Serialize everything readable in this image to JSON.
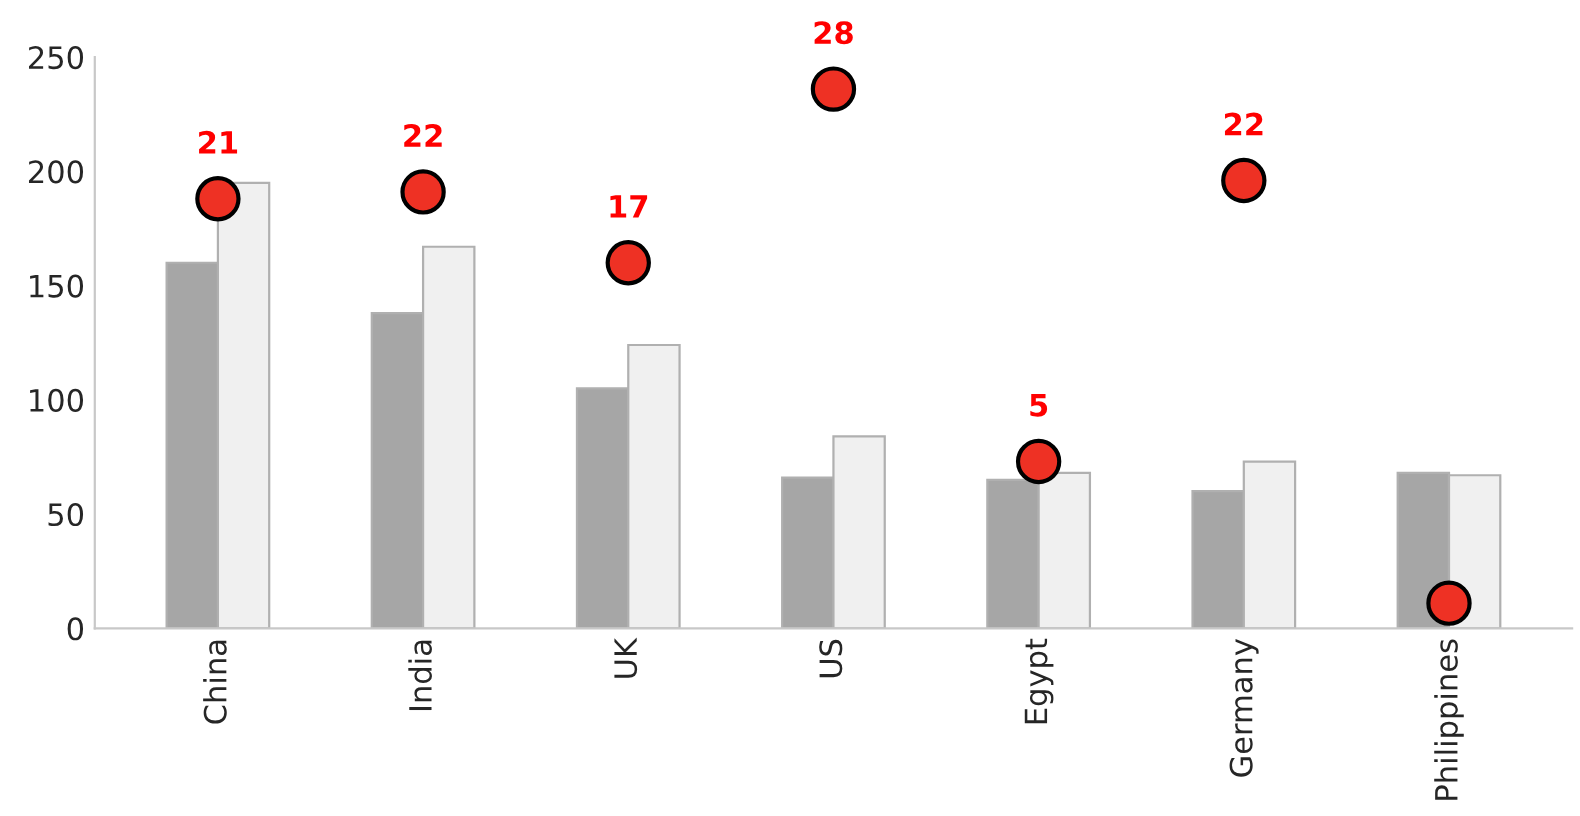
{
  "chart_data": {
    "type": "bar",
    "categories": [
      "China",
      "India",
      "UK",
      "US",
      "Egypt",
      "Germany",
      "Philippines"
    ],
    "series": [
      {
        "color": "#a6a6a6",
        "values": [
          160,
          138,
          105,
          66,
          65,
          60,
          68
        ]
      },
      {
        "color": "#f0f0f0",
        "values": [
          195,
          167,
          124,
          84,
          68,
          73,
          67
        ]
      },
      {
        "type": "scatter",
        "color": "#ee3124",
        "marker": "circle",
        "values": [
          188,
          191,
          160,
          236,
          73,
          196,
          11
        ]
      }
    ],
    "annotations": [
      {
        "text": "21",
        "x": "China",
        "y": 188
      },
      {
        "text": "22",
        "x": "India",
        "y": 191
      },
      {
        "text": "17",
        "x": "UK",
        "y": 160
      },
      {
        "text": "28",
        "x": "US",
        "y": 236
      },
      {
        "text": "5",
        "x": "Egypt",
        "y": 73
      },
      {
        "text": "22",
        "x": "Germany",
        "y": 196
      }
    ],
    "ylim": [
      0,
      250
    ],
    "yticks": [
      0,
      50,
      100,
      150,
      200,
      250
    ],
    "grid": false
  }
}
